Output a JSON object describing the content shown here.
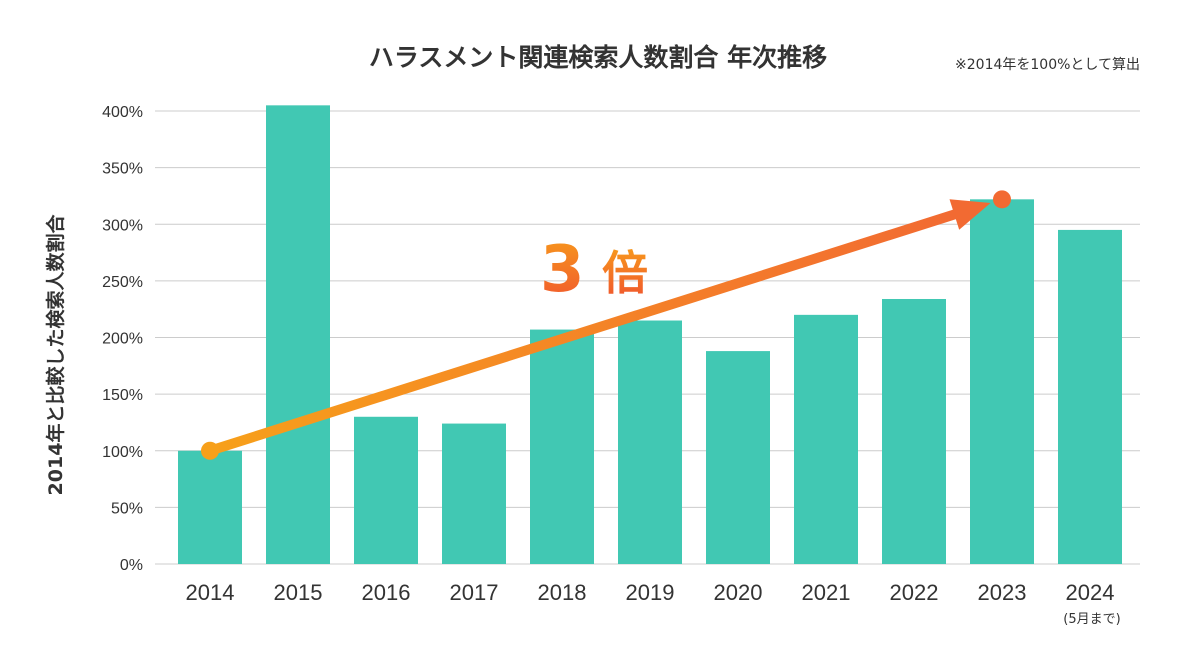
{
  "colors": {
    "bar": "#41c8b3",
    "grid": "#cccccc",
    "arrow_start": "#f7a01a",
    "arrow_end": "#f26a32",
    "text": "#333333"
  },
  "chart_data": {
    "type": "bar",
    "title": "ハラスメント関連検索人数割合 年次推移",
    "note": "※2014年を100%として算出",
    "ylabel": "2014年と比較した検索人数割合",
    "xlabel": "",
    "ylim": [
      0,
      400
    ],
    "yticks": [
      "0%",
      "50%",
      "100%",
      "150%",
      "200%",
      "250%",
      "300%",
      "350%",
      "400%"
    ],
    "categories": [
      "2014",
      "2015",
      "2016",
      "2017",
      "2018",
      "2019",
      "2020",
      "2021",
      "2022",
      "2023",
      "2024"
    ],
    "category_notes": [
      "",
      "",
      "",
      "",
      "",
      "",
      "",
      "",
      "",
      "",
      "(5月まで)"
    ],
    "values": [
      100,
      405,
      130,
      124,
      207,
      215,
      188,
      220,
      234,
      322,
      295
    ],
    "grid": true,
    "legend": "none",
    "annotation": {
      "text_number": "3",
      "text_kanji": "倍",
      "from_category": "2014",
      "from_value": 100,
      "to_category": "2023",
      "to_value": 322
    }
  }
}
